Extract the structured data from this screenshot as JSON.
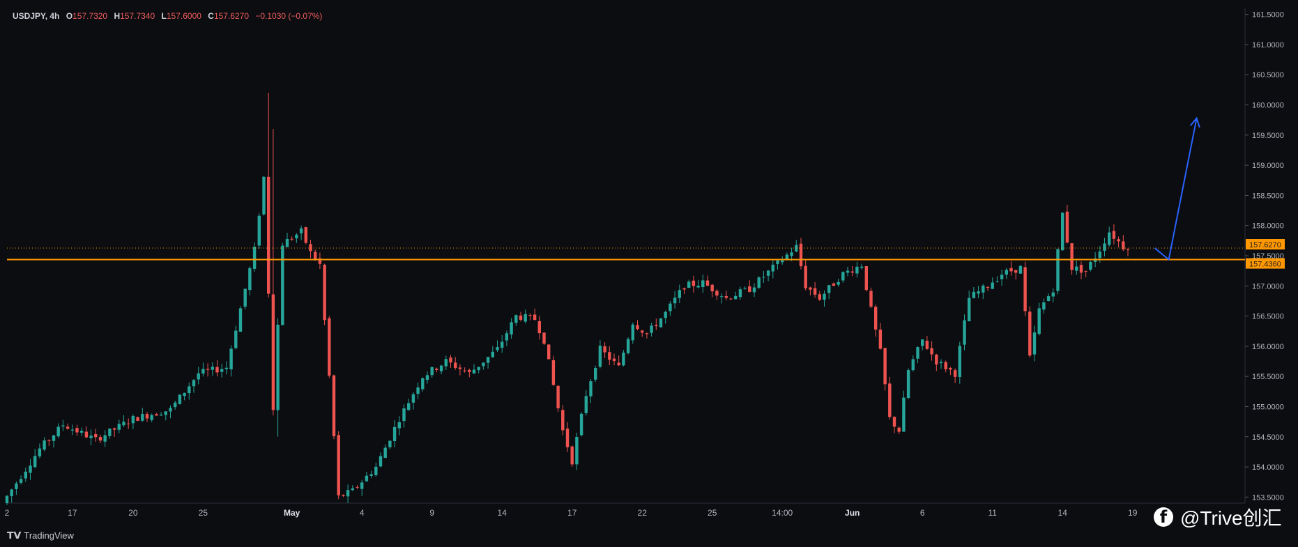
{
  "legend": {
    "symbol": "USDJPY, 4h",
    "o_label": "O",
    "o_value": "157.7320",
    "h_label": "H",
    "h_value": "157.7340",
    "l_label": "L",
    "l_value": "157.6000",
    "c_label": "C",
    "c_value": "157.6270",
    "change": "−0.1030 (−0.07%)"
  },
  "colors": {
    "up": "#26a69a",
    "down": "#ef5350",
    "level": "#ff9800",
    "arrow": "#2962ff",
    "bg": "#0c0d11"
  },
  "chart_data": {
    "type": "candlestick",
    "ylim": [
      153.4,
      161.6
    ],
    "y_ticks": [
      "161.5000",
      "161.0000",
      "160.5000",
      "160.0000",
      "159.5000",
      "159.0000",
      "158.5000",
      "158.0000",
      "157.5000",
      "157.0000",
      "156.5000",
      "156.0000",
      "155.5000",
      "155.0000",
      "154.5000",
      "154.0000",
      "153.5000"
    ],
    "y_tick_values": [
      161.5,
      161.0,
      160.5,
      160.0,
      159.5,
      159.0,
      158.5,
      158.0,
      157.5,
      157.0,
      156.5,
      156.0,
      155.5,
      155.0,
      154.5,
      154.0,
      153.5
    ],
    "x_ticks": [
      "2",
      "17",
      "20",
      "25",
      "May",
      "4",
      "9",
      "14",
      "17",
      "22",
      "25",
      "14:00",
      "Jun",
      "6",
      "11",
      "14",
      "19"
    ],
    "x_tick_index": [
      0,
      14,
      27,
      42,
      61,
      76,
      91,
      106,
      121,
      136,
      151,
      166,
      181,
      196,
      211,
      226,
      241
    ],
    "price_labels": [
      {
        "text": "157.6270",
        "value": 157.627,
        "style": "last"
      },
      {
        "text": "157.4360",
        "value": 157.436,
        "style": "level"
      }
    ],
    "horizontal_level": 157.436,
    "last_price": 157.627,
    "path": [
      [
        0,
        153.4
      ],
      [
        8,
        154.3
      ],
      [
        13,
        154.7
      ],
      [
        20,
        154.45
      ],
      [
        28,
        154.8
      ],
      [
        36,
        154.95
      ],
      [
        42,
        155.55
      ],
      [
        48,
        155.65
      ],
      [
        54,
        157.6
      ],
      [
        56,
        158.8
      ],
      [
        58,
        155.0
      ],
      [
        60,
        157.7
      ],
      [
        64,
        157.9
      ],
      [
        66,
        157.55
      ],
      [
        68,
        157.35
      ],
      [
        70,
        155.5
      ],
      [
        72,
        153.5
      ],
      [
        75,
        153.6
      ],
      [
        80,
        154.0
      ],
      [
        85,
        154.8
      ],
      [
        90,
        155.5
      ],
      [
        95,
        155.75
      ],
      [
        100,
        155.55
      ],
      [
        106,
        155.95
      ],
      [
        110,
        156.5
      ],
      [
        114,
        156.45
      ],
      [
        116,
        156.1
      ],
      [
        120,
        154.6
      ],
      [
        122,
        154.1
      ],
      [
        125,
        155.2
      ],
      [
        128,
        155.95
      ],
      [
        132,
        155.65
      ],
      [
        135,
        156.4
      ],
      [
        138,
        156.2
      ],
      [
        142,
        156.55
      ],
      [
        146,
        157.0
      ],
      [
        150,
        157.05
      ],
      [
        155,
        156.8
      ],
      [
        160,
        156.95
      ],
      [
        165,
        157.3
      ],
      [
        170,
        157.65
      ],
      [
        172,
        157.0
      ],
      [
        175,
        156.8
      ],
      [
        180,
        157.2
      ],
      [
        184,
        157.35
      ],
      [
        186,
        156.6
      ],
      [
        188,
        155.9
      ],
      [
        190,
        154.8
      ],
      [
        192,
        154.6
      ],
      [
        194,
        155.6
      ],
      [
        197,
        156.1
      ],
      [
        200,
        155.75
      ],
      [
        204,
        155.55
      ],
      [
        207,
        156.8
      ],
      [
        210,
        156.95
      ],
      [
        214,
        157.2
      ],
      [
        218,
        157.3
      ],
      [
        220,
        155.8
      ],
      [
        222,
        156.6
      ],
      [
        225,
        156.95
      ],
      [
        227,
        158.2
      ],
      [
        229,
        157.3
      ],
      [
        232,
        157.25
      ],
      [
        235,
        157.6
      ],
      [
        237,
        157.9
      ],
      [
        240,
        157.65
      ]
    ],
    "spikes": {
      "56": 160.2,
      "57": 159.6
    },
    "dips": {
      "58": 154.5,
      "72": 153.5
    },
    "projection": [
      [
        2.5,
        157.627
      ],
      [
        3.8,
        157.436
      ],
      [
        6.4,
        159.78
      ]
    ]
  },
  "watermark": {
    "icon": "facebook-icon",
    "text": "@Trive创汇"
  },
  "footer": {
    "brand": "TradingView",
    "logo_icon": "tradingview-logo-icon"
  }
}
